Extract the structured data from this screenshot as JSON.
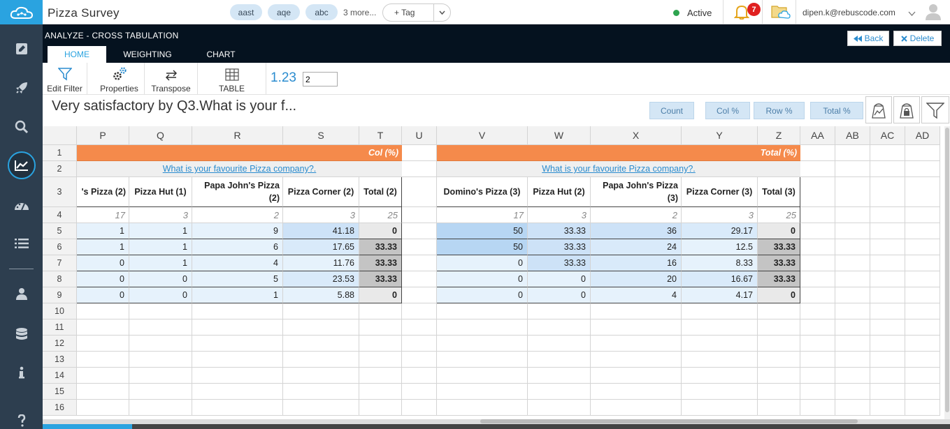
{
  "app": {
    "title": "Pizza Survey"
  },
  "top_bar": {
    "chips": [
      "aast",
      "aqe",
      "abc"
    ],
    "more": "3 more...",
    "tag_button": "+ Tag",
    "status": "Active",
    "notification_count": "7",
    "user_email": "dipen.k@rebuscode.com"
  },
  "header": {
    "section_title": "ANALYZE - CROSS TABULATION",
    "tabs": [
      "HOME",
      "WEIGHTING",
      "CHART"
    ],
    "back_label": "Back",
    "delete_label": "Delete"
  },
  "toolbar": {
    "edit_filter": "Edit Filter",
    "properties": "Properties",
    "transpose": "Transpose",
    "table": "TABLE",
    "decimals_label": "1.23",
    "decimals_value": "2"
  },
  "table_title": "Very satisfactory by Q3.What is your f...",
  "measure_buttons": [
    "Count",
    "Col %",
    "Row %",
    "Total %"
  ],
  "grid": {
    "columns": [
      "P",
      "Q",
      "R",
      "S",
      "T",
      "U",
      "V",
      "W",
      "X",
      "Y",
      "Z",
      "AA",
      "AB",
      "AC",
      "AD"
    ],
    "rows": [
      "1",
      "2",
      "3",
      "4",
      "5",
      "6",
      "7",
      "8",
      "9",
      "10",
      "11",
      "12",
      "13",
      "14",
      "15",
      "16"
    ],
    "left_block": {
      "label": "Col (%)",
      "question": "What is your favourite Pizza company?.",
      "headers": [
        "'s Pizza (2)",
        "Pizza Hut (1)",
        "Papa John's Pizza (2)",
        "Pizza Corner (2)",
        "Total (2)"
      ],
      "base": [
        "17",
        "3",
        "2",
        "3",
        "25"
      ],
      "data": [
        [
          "1",
          "1",
          "9",
          "41.18",
          "0"
        ],
        [
          "1",
          "1",
          "6",
          "17.65",
          "33.33"
        ],
        [
          "0",
          "1",
          "4",
          "11.76",
          "33.33"
        ],
        [
          "0",
          "0",
          "5",
          "23.53",
          "33.33"
        ],
        [
          "0",
          "0",
          "1",
          "5.88",
          "0"
        ]
      ]
    },
    "right_block": {
      "label": "Total (%)",
      "question": "What is your favourite Pizza company?.",
      "headers": [
        "Domino's Pizza (3)",
        "Pizza Hut (2)",
        "Papa John's Pizza (3)",
        "Pizza Corner (3)",
        "Total (3)"
      ],
      "base": [
        "17",
        "3",
        "2",
        "3",
        "25"
      ],
      "data": [
        [
          "50",
          "33.33",
          "36",
          "29.17",
          "0"
        ],
        [
          "50",
          "33.33",
          "24",
          "12.5",
          "33.33"
        ],
        [
          "0",
          "33.33",
          "16",
          "8.33",
          "33.33"
        ],
        [
          "0",
          "0",
          "20",
          "16.67",
          "33.33"
        ],
        [
          "0",
          "0",
          "4",
          "4.17",
          "0"
        ]
      ]
    }
  },
  "colors": {
    "accent": "#2aa3e0",
    "nav_bg": "#2d3e4f",
    "orange": "#f58a4b"
  }
}
